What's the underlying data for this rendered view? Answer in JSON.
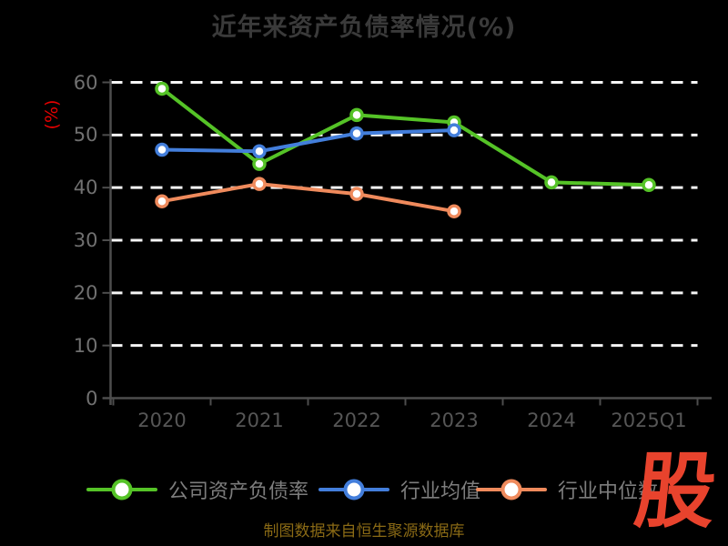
{
  "title": "近年来资产负债率情况(%)",
  "y_axis_title": "(%)",
  "footer": {
    "attribution": "制图数据来自恒生聚源数据库"
  },
  "logo": {
    "text": "股"
  },
  "colors": {
    "background": "#000000",
    "title_text": "#3a3a3a",
    "y_axis_title": "#e60000",
    "axis_line": "#4d4d4d",
    "y_tick_label": "#707070",
    "x_tick_label": "#565656",
    "gridline": "#f5f5f5",
    "legend_text": "#7d7d7d",
    "attribution_text": "#8a6a15",
    "logo_red": "#e8432d",
    "series_company": "#55c327",
    "series_industry_mean": "#437edb",
    "series_industry_median": "#ef8a5c",
    "marker_fill": "#ffffff"
  },
  "chart_data": {
    "type": "line",
    "title": "近年来资产负债率情况(%)",
    "ylabel": "(%)",
    "categories": [
      "2020",
      "2021",
      "2022",
      "2023",
      "2024",
      "2025Q1"
    ],
    "series": [
      {
        "name": "公司资产负债率",
        "color": "#55c327",
        "values": [
          58.8,
          44.5,
          53.8,
          52.4,
          41.0,
          40.5
        ]
      },
      {
        "name": "行业均值",
        "color": "#437edb",
        "values": [
          47.2,
          46.9,
          50.3,
          50.9,
          null,
          null
        ]
      },
      {
        "name": "行业中位数",
        "color": "#ef8a5c",
        "values": [
          37.4,
          40.7,
          38.8,
          35.5,
          null,
          null
        ]
      }
    ],
    "ylim": [
      0,
      60
    ],
    "yticks": [
      0,
      10,
      20,
      30,
      40,
      50,
      60
    ],
    "grid": "horizontal-dashed-white",
    "legend_position": "bottom",
    "notes": "blue and orange series end at 2023"
  }
}
